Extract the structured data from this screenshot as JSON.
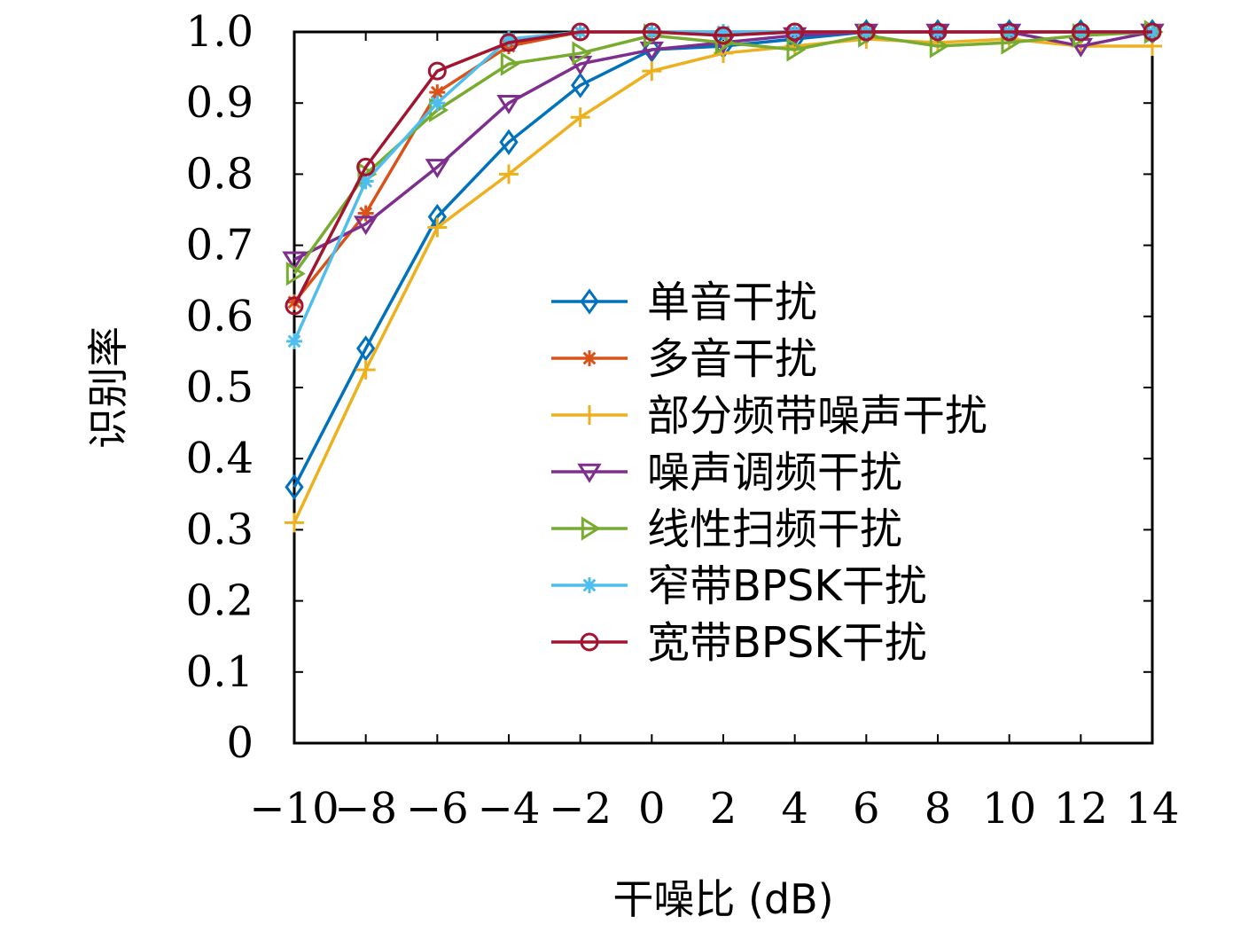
{
  "chart_data": {
    "type": "line",
    "title": "",
    "xlabel": "干噪比 (dB)",
    "ylabel": "识别率",
    "xlim": [
      -10,
      14
    ],
    "ylim": [
      0,
      1.0
    ],
    "x_ticks": [
      -10,
      -8,
      -6,
      -4,
      -2,
      0,
      2,
      4,
      6,
      8,
      10,
      12,
      14
    ],
    "x_tick_labels": [
      "−10",
      "−8",
      "−6",
      "−4",
      "−2",
      "0",
      "2",
      "4",
      "6",
      "8",
      "10",
      "12",
      "14"
    ],
    "y_ticks": [
      0,
      0.1,
      0.2,
      0.3,
      0.4,
      0.5,
      0.6,
      0.7,
      0.8,
      0.9,
      1.0
    ],
    "y_tick_labels": [
      "0",
      "0.1",
      "0.2",
      "0.3",
      "0.4",
      "0.5",
      "0.6",
      "0.7",
      "0.8",
      "0.9",
      "1.0"
    ],
    "grid": false,
    "legend_position": "center-right",
    "x": [
      -10,
      -8,
      -6,
      -4,
      -2,
      0,
      2,
      4,
      6,
      8,
      10,
      12,
      14
    ],
    "series": [
      {
        "name": "单音干扰",
        "color": "#0072BD",
        "marker": "diamond",
        "values": [
          0.36,
          0.555,
          0.74,
          0.845,
          0.925,
          0.975,
          0.98,
          0.99,
          1.0,
          1.0,
          1.0,
          1.0,
          1.0
        ]
      },
      {
        "name": "多音干扰",
        "color": "#D95319",
        "marker": "asterisk",
        "values": [
          0.62,
          0.745,
          0.915,
          0.98,
          1.0,
          1.0,
          1.0,
          1.0,
          1.0,
          1.0,
          1.0,
          1.0,
          1.0
        ]
      },
      {
        "name": "部分频带噪声干扰",
        "color": "#EDB120",
        "marker": "plus",
        "values": [
          0.31,
          0.525,
          0.725,
          0.8,
          0.88,
          0.945,
          0.97,
          0.98,
          0.99,
          0.985,
          0.99,
          0.98,
          0.98
        ]
      },
      {
        "name": "噪声调频干扰",
        "color": "#7E2F8E",
        "marker": "triangle-down",
        "values": [
          0.68,
          0.73,
          0.81,
          0.9,
          0.955,
          0.975,
          0.985,
          0.995,
          1.0,
          1.0,
          1.0,
          0.98,
          1.0
        ]
      },
      {
        "name": "线性扫频干扰",
        "color": "#77AC30",
        "marker": "triangle-right",
        "values": [
          0.66,
          0.8,
          0.89,
          0.955,
          0.97,
          0.995,
          0.985,
          0.975,
          0.995,
          0.98,
          0.985,
          0.995,
          1.0
        ]
      },
      {
        "name": "窄带BPSK干扰",
        "color": "#4DBEEE",
        "marker": "star",
        "values": [
          0.565,
          0.79,
          0.9,
          0.99,
          1.0,
          1.0,
          1.0,
          1.0,
          1.0,
          1.0,
          1.0,
          1.0,
          1.0
        ]
      },
      {
        "name": "宽带BPSK干扰",
        "color": "#A2142F",
        "marker": "circle",
        "values": [
          0.615,
          0.81,
          0.945,
          0.985,
          1.0,
          1.0,
          0.995,
          1.0,
          1.0,
          1.0,
          1.0,
          1.0,
          1.0
        ]
      }
    ]
  }
}
